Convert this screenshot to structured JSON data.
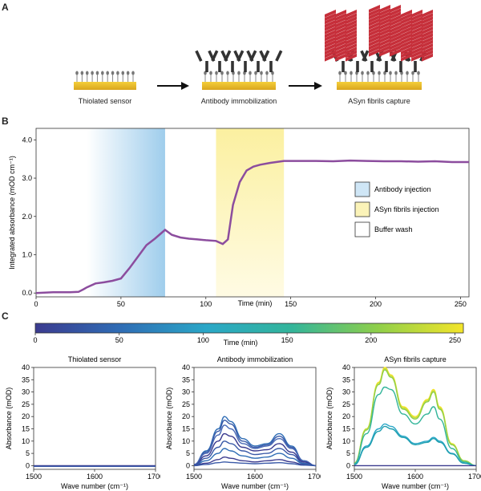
{
  "panel_a": {
    "letter": "A",
    "steps": [
      "Thiolated sensor",
      "Antibody immobilization",
      "ASyn fibrils capture"
    ]
  },
  "panel_b": {
    "letter": "B",
    "legend": [
      "Antibody injection",
      "ASyn fibrils injection",
      "Buffer wash"
    ]
  },
  "panel_c": {
    "letter": "C",
    "colorbar": {
      "label": "Time (min)",
      "ticks": [
        "0",
        "50",
        "100",
        "150",
        "200",
        "250"
      ],
      "tick_values": [
        0,
        50,
        100,
        150,
        200,
        250
      ],
      "range": [
        0,
        255
      ],
      "colors": [
        "#3b3b8f",
        "#2f6db5",
        "#2aa7c7",
        "#33b59a",
        "#8fcf4a",
        "#f4e52a"
      ]
    }
  },
  "chart_data": [
    {
      "type": "line",
      "xlabel": "Time (min)",
      "ylabel": "Integrated absorbance (mOD cm⁻¹)",
      "xlim": [
        0,
        255
      ],
      "ylim": [
        -0.1,
        4.3
      ],
      "x_ticks": [
        "0",
        "50",
        "100",
        "150",
        "200",
        "250"
      ],
      "x_tick_values": [
        0,
        50,
        100,
        150,
        200,
        250
      ],
      "y_ticks": [
        "0.0",
        "1.0",
        "2.0",
        "3.0",
        "4.0"
      ],
      "y_tick_values": [
        0,
        1,
        2,
        3,
        4
      ],
      "shaded_regions": [
        {
          "x0": 30,
          "x1": 76,
          "color": "#a9d4ee"
        },
        {
          "x0": 106,
          "x1": 146,
          "color": "#fbf1a8"
        }
      ],
      "line_color": "#8c4d9e",
      "x": [
        0,
        10,
        20,
        25,
        28,
        30,
        35,
        40,
        45,
        50,
        55,
        60,
        65,
        70,
        76,
        80,
        85,
        90,
        95,
        100,
        106,
        110,
        113,
        116,
        120,
        124,
        128,
        132,
        138,
        146,
        155,
        165,
        175,
        185,
        195,
        205,
        215,
        225,
        235,
        245,
        255
      ],
      "y": [
        0.0,
        0.02,
        0.02,
        0.03,
        0.1,
        0.15,
        0.25,
        0.28,
        0.32,
        0.38,
        0.65,
        0.95,
        1.25,
        1.42,
        1.65,
        1.52,
        1.45,
        1.42,
        1.4,
        1.38,
        1.36,
        1.28,
        1.4,
        2.3,
        2.9,
        3.2,
        3.3,
        3.35,
        3.4,
        3.45,
        3.45,
        3.45,
        3.44,
        3.46,
        3.45,
        3.44,
        3.44,
        3.43,
        3.44,
        3.42,
        3.42
      ]
    },
    {
      "type": "line",
      "title": "Thiolated sensor",
      "xlabel": "Wave number (cm⁻¹)",
      "ylabel": "Absorbance (mOD)",
      "xlim": [
        1500,
        1700
      ],
      "ylim": [
        -1.5,
        40
      ],
      "x_ticks": [
        "1500",
        "1600",
        "1700"
      ],
      "x_tick_values": [
        1500,
        1600,
        1700
      ],
      "y_ticks": [
        "0",
        "5",
        "10",
        "15",
        "20",
        "25",
        "30",
        "35",
        "40"
      ],
      "y_tick_values": [
        0,
        5,
        10,
        15,
        20,
        25,
        30,
        35,
        40
      ],
      "x": [
        1500,
        1700
      ],
      "series": [
        {
          "values": [
            0,
            0
          ],
          "color": "#3b3b8f"
        },
        {
          "values": [
            -0.3,
            -0.3
          ],
          "color": "#3a5aa8"
        }
      ]
    },
    {
      "type": "line",
      "title": "Antibody immobilization",
      "xlabel": "Wave number (cm⁻¹)",
      "ylabel": "Absorbance (mOD)",
      "xlim": [
        1500,
        1700
      ],
      "ylim": [
        -1.5,
        40
      ],
      "x_ticks": [
        "1500",
        "1600",
        "1700"
      ],
      "x_tick_values": [
        1500,
        1600,
        1700
      ],
      "y_ticks": [
        "0",
        "5",
        "10",
        "15",
        "20",
        "25",
        "30",
        "35",
        "40"
      ],
      "y_tick_values": [
        0,
        5,
        10,
        15,
        20,
        25,
        30,
        35,
        40
      ],
      "x": [
        1500,
        1520,
        1540,
        1550,
        1560,
        1580,
        1600,
        1620,
        1640,
        1660,
        1680,
        1700
      ],
      "series": [
        {
          "values": [
            0.5,
            6,
            15,
            20,
            18,
            11,
            8,
            9,
            13,
            8,
            2,
            0
          ],
          "color": "#2f6db5"
        },
        {
          "values": [
            0.5,
            5.5,
            14,
            18.5,
            17,
            10,
            7.5,
            8.5,
            12,
            7.5,
            2,
            0
          ],
          "color": "#3a5aa8"
        },
        {
          "values": [
            0.4,
            5,
            12.5,
            16.5,
            15,
            9,
            7,
            8,
            11,
            7,
            1.8,
            0
          ],
          "color": "#4a6ab6"
        },
        {
          "values": [
            0.3,
            4,
            10,
            13,
            12,
            7.5,
            6,
            6.5,
            9,
            5.5,
            1.5,
            0
          ],
          "color": "#3b3b8f"
        },
        {
          "values": [
            0.2,
            3,
            7.5,
            10,
            9,
            6,
            4.5,
            5,
            7,
            4.5,
            1,
            0
          ],
          "color": "#3a5aa8"
        },
        {
          "values": [
            0.1,
            2,
            5,
            7,
            6,
            4,
            3,
            3.5,
            5,
            3,
            0.8,
            0
          ],
          "color": "#2f6db5"
        },
        {
          "values": [
            0.1,
            1,
            2.5,
            3.5,
            3,
            2,
            1.5,
            2,
            2.5,
            1.5,
            0.4,
            0
          ],
          "color": "#3b3b8f"
        },
        {
          "values": [
            0,
            0.5,
            1.2,
            1.5,
            1.3,
            1,
            0.8,
            1,
            1.2,
            0.8,
            0.2,
            0
          ],
          "color": "#3a5aa8"
        }
      ]
    },
    {
      "type": "line",
      "title": "ASyn fibrils capture",
      "xlabel": "Wave number (cm⁻¹)",
      "ylabel": "Absorbance (mOD)",
      "xlim": [
        1500,
        1700
      ],
      "ylim": [
        -1.5,
        40
      ],
      "x_ticks": [
        "1500",
        "1600",
        "1700"
      ],
      "x_tick_values": [
        1500,
        1600,
        1700
      ],
      "y_ticks": [
        "0",
        "5",
        "10",
        "15",
        "20",
        "25",
        "30",
        "35",
        "40"
      ],
      "y_tick_values": [
        0,
        5,
        10,
        15,
        20,
        25,
        30,
        35,
        40
      ],
      "x": [
        1500,
        1520,
        1540,
        1550,
        1560,
        1580,
        1600,
        1620,
        1630,
        1640,
        1660,
        1680,
        1700
      ],
      "series": [
        {
          "values": [
            1,
            15,
            34,
            40,
            37,
            24,
            20,
            27,
            31,
            24,
            9,
            2,
            0
          ],
          "color": "#f4e52a"
        },
        {
          "values": [
            1,
            15,
            33.5,
            39.5,
            36.5,
            23.5,
            19.5,
            26.5,
            30.5,
            23.5,
            8.8,
            2,
            0
          ],
          "color": "#c8dc3a"
        },
        {
          "values": [
            1,
            14.5,
            33,
            39,
            36,
            23,
            19,
            26,
            30,
            23,
            8.5,
            2,
            0
          ],
          "color": "#8fcf4a"
        },
        {
          "values": [
            0.8,
            13,
            29,
            32,
            31,
            21,
            17,
            21,
            24,
            19,
            7,
            1.5,
            0
          ],
          "color": "#33b59a"
        },
        {
          "values": [
            0.5,
            8,
            15,
            17,
            16,
            12,
            9,
            10,
            11.5,
            10,
            5,
            1,
            0
          ],
          "color": "#2aa7c7"
        },
        {
          "values": [
            0.4,
            7.5,
            14,
            16,
            15,
            11.5,
            8.5,
            9.5,
            11,
            9.5,
            4.8,
            1,
            0
          ],
          "color": "#1f9fb0"
        },
        {
          "values": [
            0,
            0,
            0,
            0,
            0,
            0,
            0,
            0,
            0,
            0,
            0,
            0,
            0
          ],
          "color": "#3b3b8f"
        }
      ]
    }
  ]
}
